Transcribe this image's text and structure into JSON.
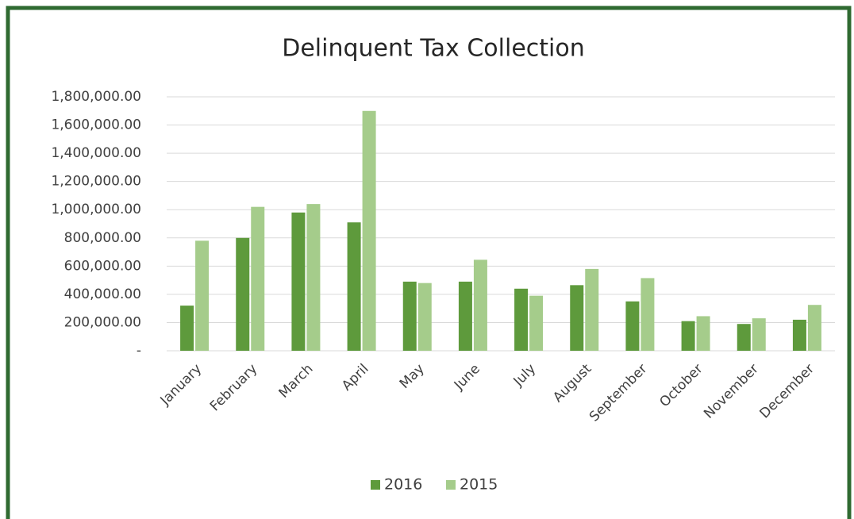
{
  "chart_data": {
    "type": "bar",
    "title": "Delinquent Tax Collection",
    "categories": [
      "January",
      "February",
      "March",
      "April",
      "May",
      "June",
      "July",
      "August",
      "September",
      "October",
      "November",
      "December"
    ],
    "series": [
      {
        "name": "2016",
        "color": "#5e9a3c",
        "values": [
          320000,
          800000,
          980000,
          910000,
          490000,
          490000,
          440000,
          465000,
          350000,
          210000,
          190000,
          220000
        ]
      },
      {
        "name": "2015",
        "color": "#a5cc8b",
        "values": [
          780000,
          1020000,
          1040000,
          1700000,
          480000,
          645000,
          390000,
          580000,
          515000,
          245000,
          230000,
          325000
        ]
      }
    ],
    "ylim": [
      0,
      1800000
    ],
    "yticks": [
      {
        "value": 0,
        "label": "-"
      },
      {
        "value": 200000,
        "label": "200,000.00"
      },
      {
        "value": 400000,
        "label": "400,000.00"
      },
      {
        "value": 600000,
        "label": "600,000.00"
      },
      {
        "value": 800000,
        "label": "800,000.00"
      },
      {
        "value": 1000000,
        "label": "1,000,000.00"
      },
      {
        "value": 1200000,
        "label": "1,200,000.00"
      },
      {
        "value": 1400000,
        "label": "1,400,000.00"
      },
      {
        "value": 1600000,
        "label": "1,600,000.00"
      },
      {
        "value": 1800000,
        "label": "1,800,000.00"
      }
    ],
    "grid": true,
    "legend": "bottom"
  }
}
